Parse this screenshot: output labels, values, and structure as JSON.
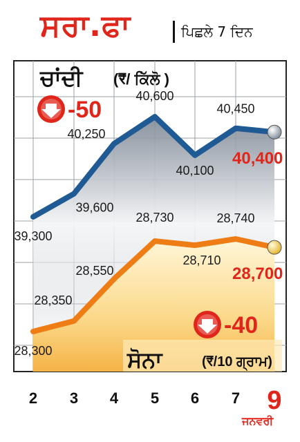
{
  "title": "ਸਰਾ.ਫਾ",
  "subtitle": "ਪਿਛਲੇ 7 ਦਿਨ",
  "silver": {
    "label": "ਚਾਂਦੀ",
    "unit": "(₹/ ਕਿੱਲੋ )",
    "change": "-50",
    "latest": "40,400"
  },
  "gold": {
    "label": "ਸੋਨਾ",
    "unit": "(₹/10 ਗ੍ਰਾਮ)",
    "change": "-40",
    "latest": "28,700"
  },
  "month": "ਜਨਵਰੀ",
  "colors": {
    "silver_line": "#1f5a94",
    "gold_line": "#ef7d16",
    "accent": "#e0261b"
  },
  "chart_data": {
    "type": "line",
    "categories": [
      "2",
      "3",
      "4",
      "5",
      "6",
      "7",
      "9"
    ],
    "series": [
      {
        "name": "ਚਾਂਦੀ",
        "values": [
          39300,
          39600,
          40250,
          40600,
          40100,
          40450,
          40400
        ],
        "labels": [
          "39,300",
          "39,600",
          "40,250",
          "40,600",
          "40,100",
          "40,450",
          "40,400"
        ]
      },
      {
        "name": "ਸੋਨਾ",
        "values": [
          28300,
          28350,
          28550,
          28730,
          28710,
          28740,
          28700
        ],
        "labels": [
          "28,300",
          "28,350",
          "28,550",
          "28,730",
          "28,710",
          "28,740",
          "28,700"
        ]
      }
    ],
    "grid": true
  }
}
